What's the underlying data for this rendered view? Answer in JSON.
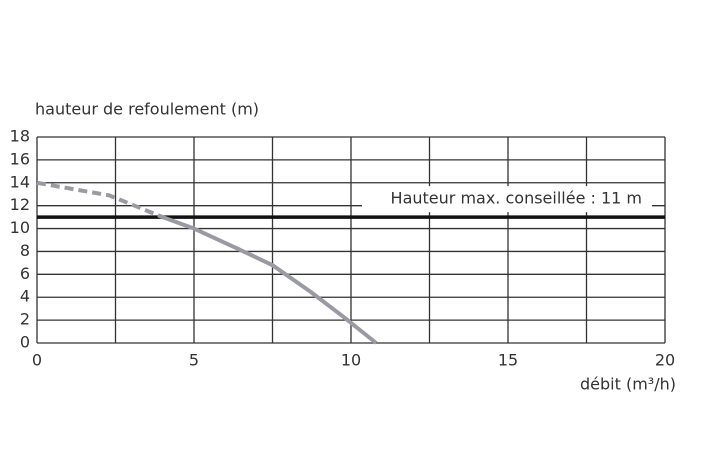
{
  "chart_data": {
    "type": "line",
    "ylabel": "hauteur de refoulement (m)",
    "xlabel": "débit (m³/h)",
    "xlim": [
      0,
      20
    ],
    "xticks": [
      0,
      5,
      10,
      15,
      20
    ],
    "xminor": [
      2.5,
      7.5,
      12.5,
      17.5
    ],
    "ylim": [
      0,
      18
    ],
    "yticks": [
      0,
      2,
      4,
      6,
      8,
      10,
      12,
      14,
      16,
      18
    ],
    "grid": true,
    "series": [
      {
        "color": "#9a9aa2",
        "style": "dashed",
        "x": [
          0,
          2.3,
          4
        ],
        "values": [
          14,
          12.9,
          11
        ]
      },
      {
        "color": "#9a9aa2",
        "style": "solid",
        "x": [
          4,
          5,
          6.5,
          7.5,
          8.7,
          9.8,
          10.8
        ],
        "values": [
          11,
          10,
          8.1,
          6.8,
          4.5,
          2.2,
          0
        ]
      }
    ],
    "reference_line": {
      "value": 11,
      "label": "Hauteur max. conseillée : 11 m",
      "color": "#111111"
    }
  }
}
